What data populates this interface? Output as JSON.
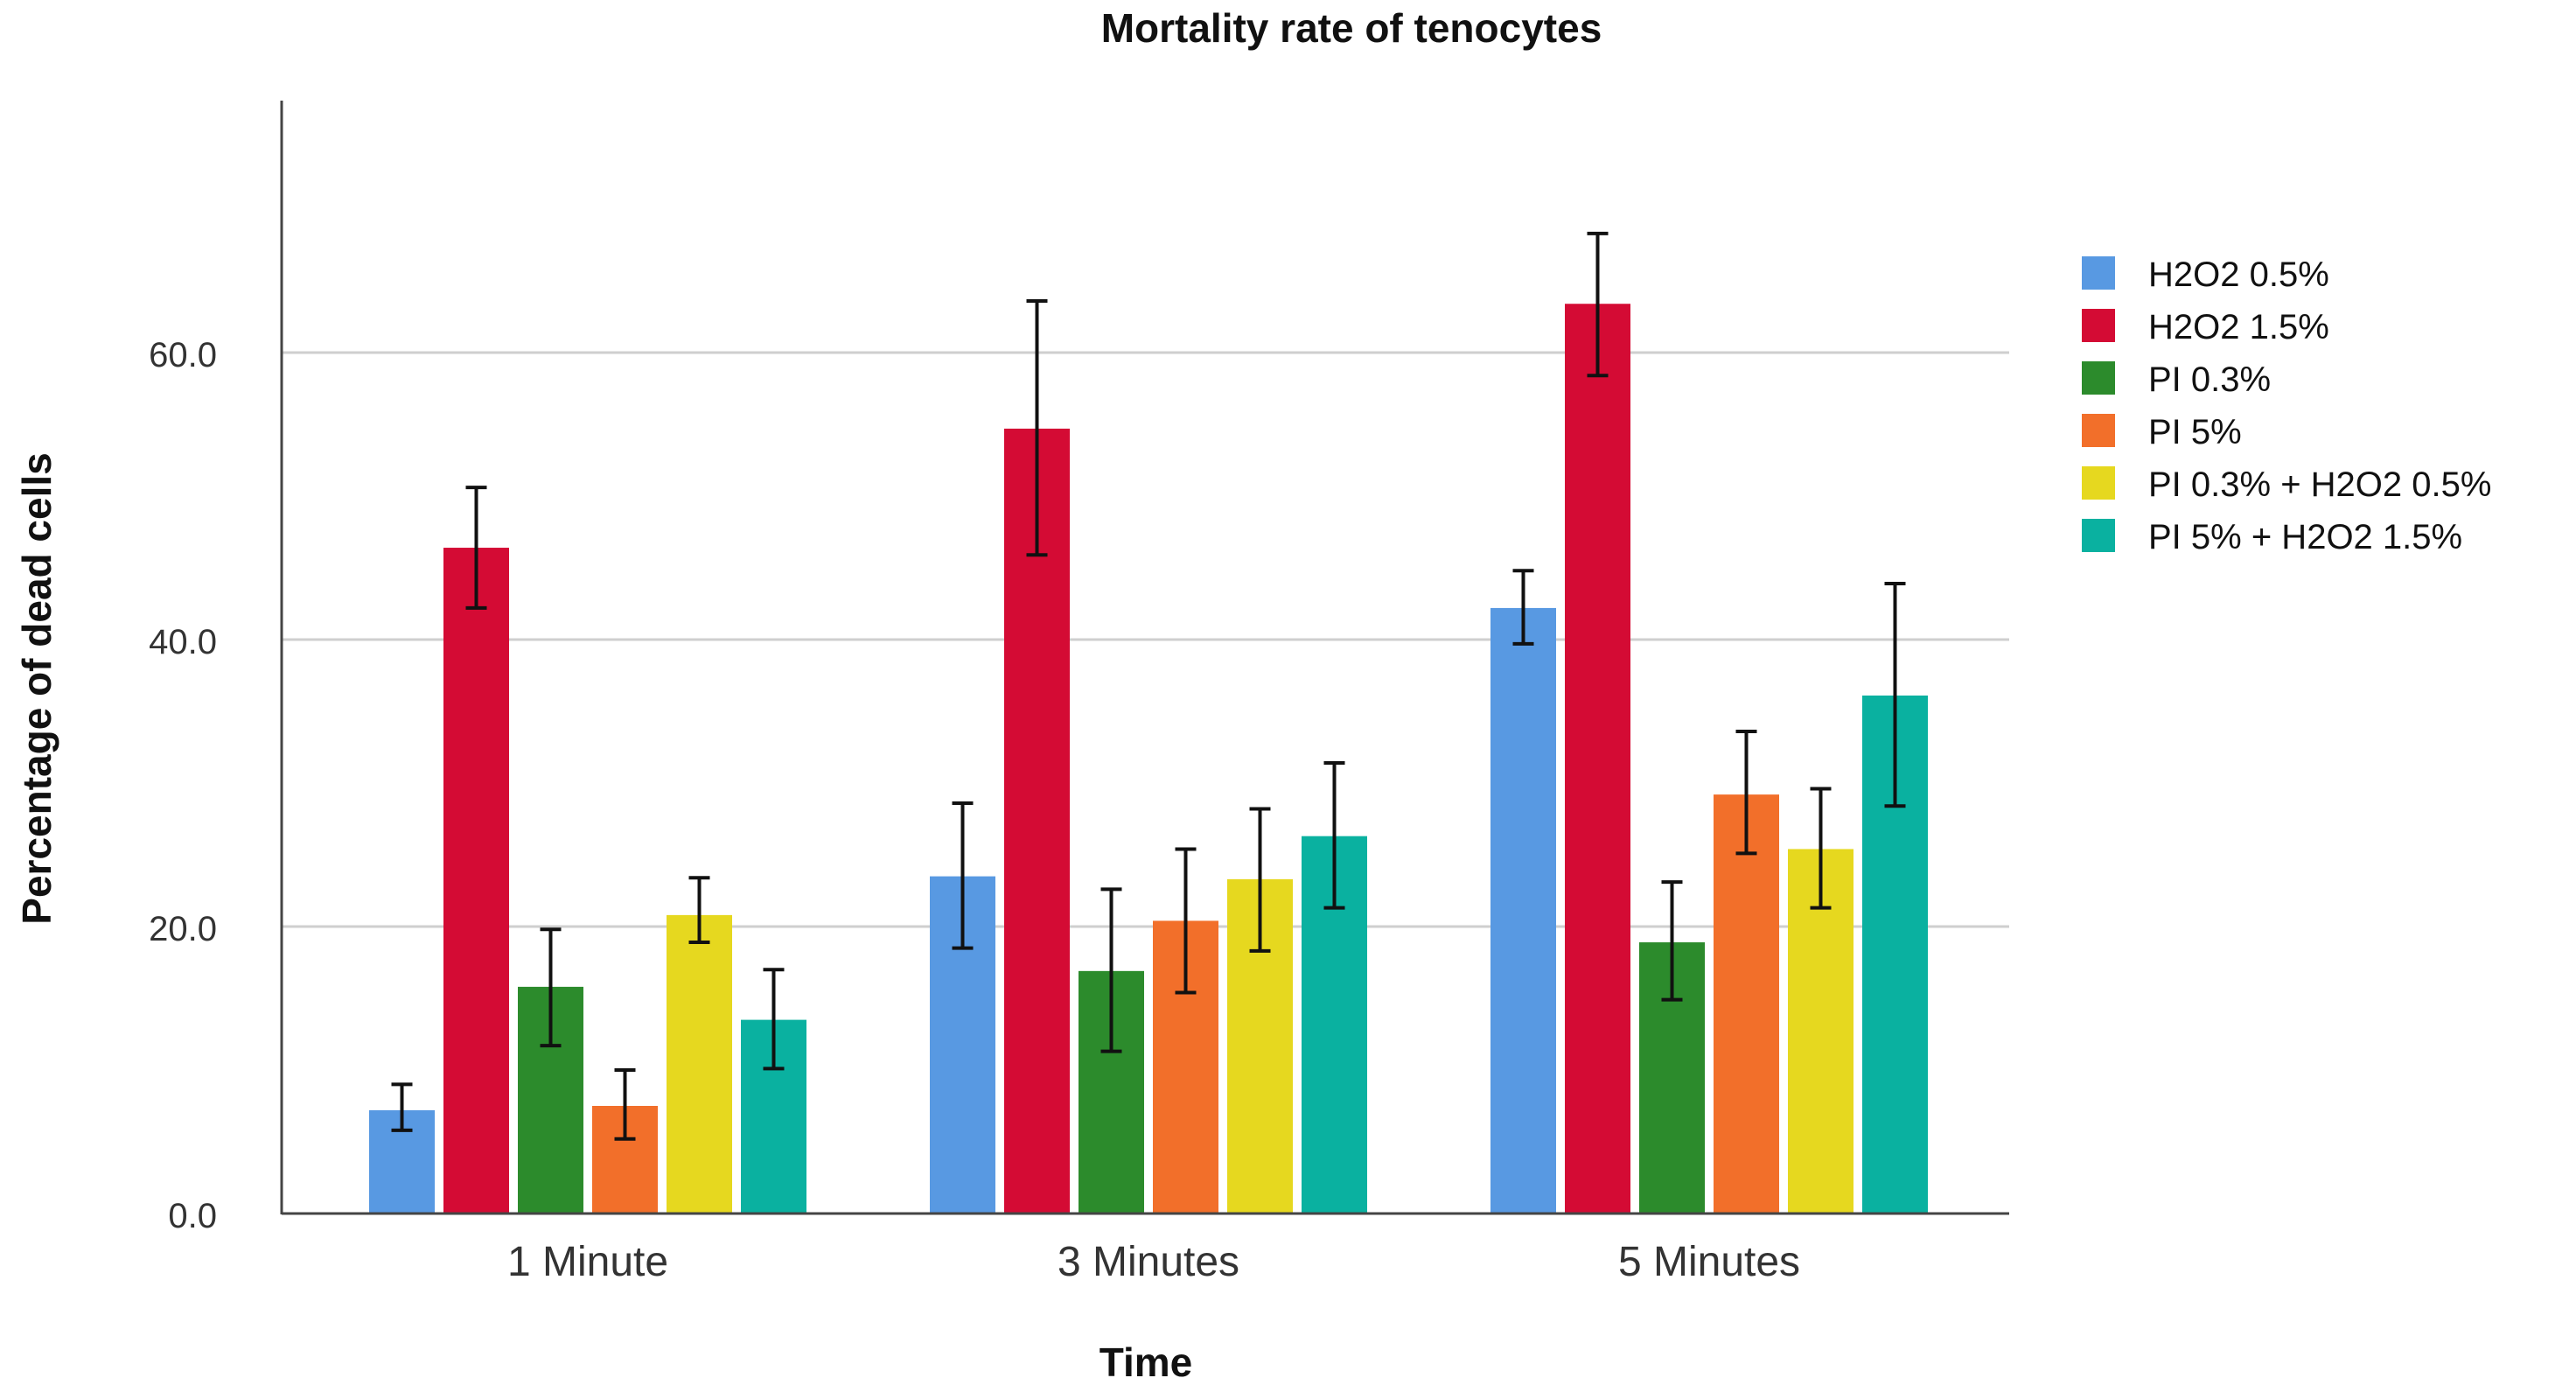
{
  "chart_data": {
    "type": "bar",
    "title": "Mortality rate of tenocytes",
    "xlabel": "Time",
    "ylabel": "Percentage of dead cells",
    "categories": [
      "1 Minute",
      "3 Minutes",
      "5 Minutes"
    ],
    "yticks": [
      {
        "value": 0,
        "label": "0.0"
      },
      {
        "value": 20,
        "label": "20.0"
      },
      {
        "value": 40,
        "label": "40.0"
      },
      {
        "value": 60,
        "label": "60.0"
      }
    ],
    "ylim": [
      0,
      77
    ],
    "grid": true,
    "legend_position": "right",
    "error_bars": true,
    "series": [
      {
        "name": "H2O2 0.5%",
        "color": "#5899e2",
        "values": [
          7.2,
          23.5,
          42.2
        ],
        "err_low": [
          5.8,
          18.5,
          39.7
        ],
        "err_high": [
          9.0,
          28.6,
          44.8
        ]
      },
      {
        "name": "H2O2 1.5%",
        "color": "#d40b34",
        "values": [
          46.4,
          54.7,
          63.4
        ],
        "err_low": [
          42.2,
          45.9,
          58.4
        ],
        "err_high": [
          50.6,
          63.6,
          68.3
        ]
      },
      {
        "name": "PI 0.3%",
        "color": "#2c8b2c",
        "values": [
          15.8,
          16.9,
          18.9
        ],
        "err_low": [
          11.7,
          11.3,
          14.9
        ],
        "err_high": [
          19.8,
          22.6,
          23.1
        ]
      },
      {
        "name": "PI 5%",
        "color": "#f26f2a",
        "values": [
          7.5,
          20.4,
          29.2
        ],
        "err_low": [
          5.2,
          15.4,
          25.1
        ],
        "err_high": [
          10.0,
          25.4,
          33.6
        ]
      },
      {
        "name": "PI 0.3% + H2O2 0.5%",
        "color": "#e6d81f",
        "values": [
          20.8,
          23.3,
          25.4
        ],
        "err_low": [
          18.9,
          18.3,
          21.3
        ],
        "err_high": [
          23.4,
          28.2,
          29.6
        ]
      },
      {
        "name": "PI 5% + H2O2 1.5%",
        "color": "#0ab1a0",
        "values": [
          13.5,
          26.3,
          36.1
        ],
        "err_low": [
          10.1,
          21.3,
          28.4
        ],
        "err_high": [
          17.0,
          31.4,
          43.9
        ]
      }
    ]
  }
}
